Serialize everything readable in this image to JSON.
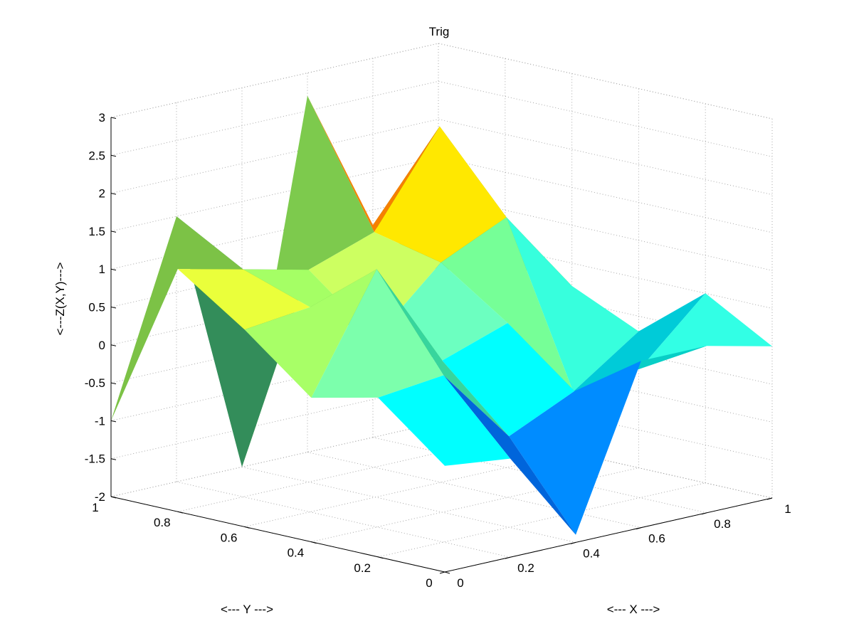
{
  "chart_data": {
    "type": "surface",
    "title": "Trig",
    "xlabel": "<--- X --->",
    "ylabel": "<--- Y --->",
    "zlabel": "<---Z(X,Y)--->",
    "xlim": [
      0,
      1
    ],
    "ylim": [
      0,
      1
    ],
    "zlim": [
      -2,
      3
    ],
    "x_ticks": [
      "0",
      "0.2",
      "0.4",
      "0.6",
      "0.8",
      "1"
    ],
    "y_ticks": [
      "0",
      "0.2",
      "0.4",
      "0.6",
      "0.8",
      "1"
    ],
    "z_ticks": [
      "-2",
      "-1.5",
      "-1",
      "-0.5",
      "0",
      "0.5",
      "1",
      "1.5",
      "2",
      "2.5",
      "3"
    ],
    "grid": true,
    "colormap": "jet",
    "x": [
      0,
      0.2,
      0.4,
      0.6,
      0.8,
      1
    ],
    "y": [
      0,
      0.2,
      0.4,
      0.6,
      0.8,
      1
    ],
    "z": [
      [
        -0.6,
        -0.7,
        -1.9,
        0.2,
        0.2,
        0.0
      ],
      [
        0.1,
        0.2,
        -0.8,
        -0.4,
        -0.3,
        0.5
      ],
      [
        -0.1,
        1.4,
        0.0,
        0.3,
        -0.8,
        -0.2
      ],
      [
        0.6,
        0.7,
        0.1,
        0.9,
        1.3,
        0.2
      ],
      [
        1.2,
        1.0,
        0.8,
        1.1,
        2.3,
        0.3
      ],
      [
        -1.0,
        1.5,
        -2.0,
        2.7,
        0.8,
        0.0
      ]
    ]
  }
}
